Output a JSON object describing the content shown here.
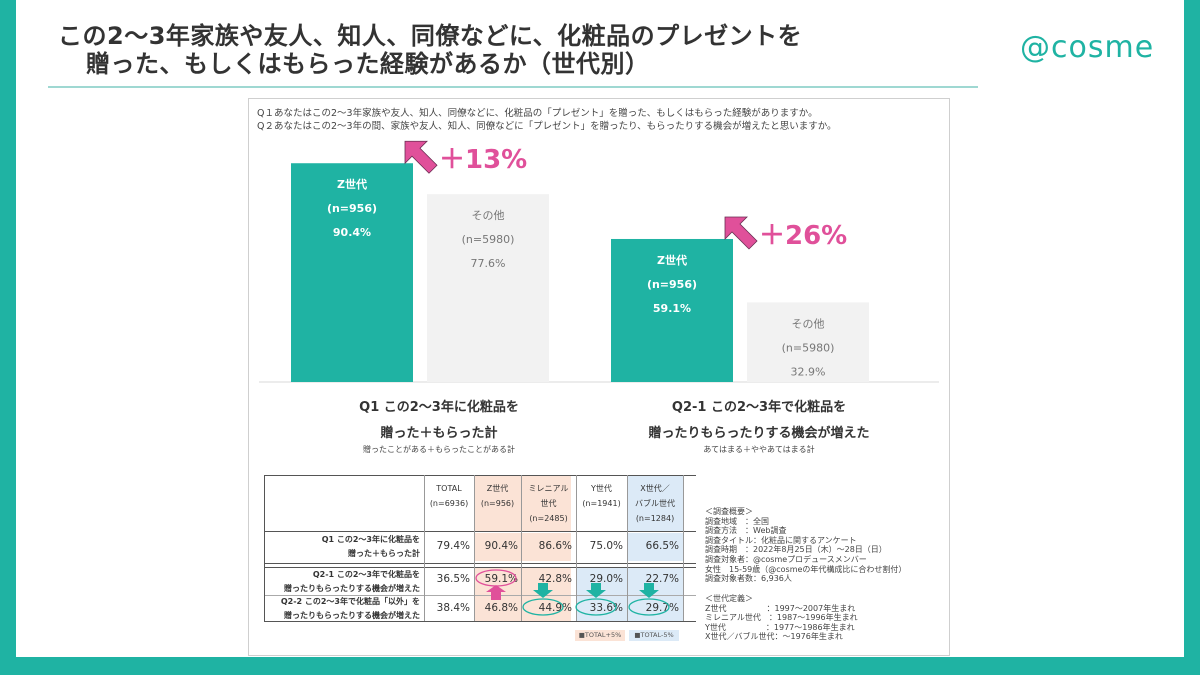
{
  "header": {
    "title_line1": "この2～3年家族や友人、知人、同僚などに、化粧品のプレゼントを",
    "title_line2": "贈った、もしくはもらった経験があるか（世代別）",
    "logo": "@cosme"
  },
  "questions": {
    "q1": "Q１あなたはこの2～3年家族や友人、知人、同僚などに、化粧品の「プレゼント」を贈った、もしくはもらった経験がありますか。",
    "q2": "Q２あなたはこの2～3年の間、家族や友人、知人、同僚などに「プレゼント」を贈ったり、もらったりする機会が増えたと思いますか。"
  },
  "chart_data": {
    "type": "bar",
    "groups": [
      {
        "label_line1": "Q1 この2～3年に化粧品を",
        "label_line2": "贈った＋もらった計",
        "sublabel": "贈ったことがある＋もらったことがある計",
        "diff": "＋13%",
        "bars": [
          {
            "name": "Z世代",
            "n": "(n=956)",
            "value": 90.4,
            "display": "90.4%",
            "color": "#1fb3a3",
            "text_color": "#ffffff"
          },
          {
            "name": "その他",
            "n": "(n=5980)",
            "value": 77.6,
            "display": "77.6%",
            "color": "#f2f2f2",
            "text_color": "#777777"
          }
        ]
      },
      {
        "label_line1": "Q2-1 この2～3年で化粧品を",
        "label_line2": "贈ったりもらったりする機会が増えた",
        "sublabel": "あてはまる＋ややあてはまる計",
        "diff": "＋26%",
        "bars": [
          {
            "name": "Z世代",
            "n": "(n=956)",
            "value": 59.1,
            "display": "59.1%",
            "color": "#1fb3a3",
            "text_color": "#ffffff"
          },
          {
            "name": "その他",
            "n": "(n=5980)",
            "value": 32.9,
            "display": "32.9%",
            "color": "#f2f2f2",
            "text_color": "#777777"
          }
        ]
      }
    ],
    "accent_color": "#e0509a"
  },
  "table": {
    "columns": [
      {
        "l1": "",
        "l2": "TOTAL",
        "n": "(n=6936)"
      },
      {
        "l1": "",
        "l2": "Z世代",
        "n": "(n=956)"
      },
      {
        "l1": "ミレニアル",
        "l2": "世代",
        "n": "(n=2485)"
      },
      {
        "l1": "",
        "l2": "Y世代",
        "n": "(n=1941)"
      },
      {
        "l1": "X世代／",
        "l2": "バブル世代",
        "n": "(n=1284)"
      }
    ],
    "rows": [
      {
        "l1": "Q1 この2～3年に化粧品を",
        "l2": "贈った＋もらった計",
        "values": [
          "79.4%",
          "90.4%",
          "86.6%",
          "75.0%",
          "66.5%"
        ]
      },
      {
        "l1": "Q2-1 この2～3年で化粧品を",
        "l2": "贈ったりもらったりする機会が増えた",
        "values": [
          "36.5%",
          "59.1%",
          "42.8%",
          "29.0%",
          "22.7%"
        ]
      },
      {
        "l1": "Q2-2 この2～3年で化粧品「以外」を",
        "l2": "贈ったりもらったりする機会が増えた",
        "values": [
          "38.4%",
          "46.8%",
          "44.9%",
          "33.6%",
          "29.7%"
        ]
      }
    ],
    "legend_plus": "■TOTAL+5%",
    "legend_minus": "■TOTAL-5%",
    "plus_color": "#fbe3d6",
    "minus_color": "#dceaf7"
  },
  "notes": {
    "survey": "＜調査概要＞\n調査地域　：全国\n調査方法　：Web調査\n調査タイトル：化粧品に関するアンケート\n調査時期　：2022年8月25日（木）～28日（日）\n調査対象者：@cosmeプロデュースメンバー\n女性　15-59歳（@cosmeの年代構成比に合わせ割付）\n調査対象者数：6,936人",
    "definitions": "＜世代定義＞\nZ世代　　　　　：1997～2007年生まれ\nミレニアル世代　：1987～1996年生まれ\nY世代　　　　　：1977～1986年生まれ\nX世代／バブル世代：～1976年生まれ"
  }
}
